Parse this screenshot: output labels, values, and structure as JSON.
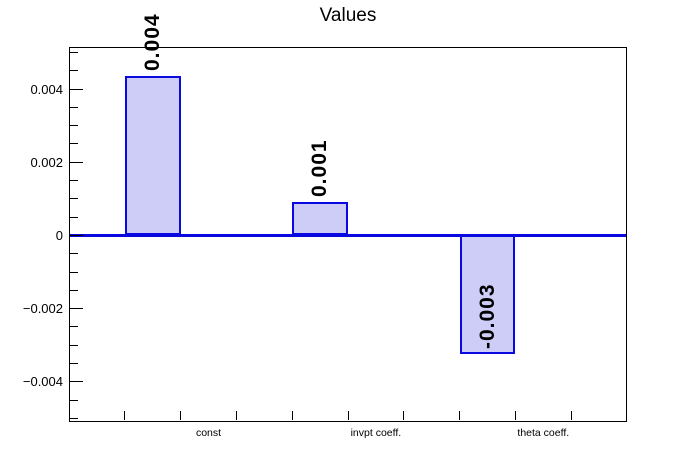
{
  "chart_data": {
    "type": "bar",
    "title": "Values",
    "categories": [
      "const",
      "invpt coeff.",
      "theta coeff."
    ],
    "values": [
      0.00436,
      0.0009,
      -0.00325
    ],
    "bar_value_labels": [
      "0.004",
      "0.001",
      "-0.003"
    ],
    "xlabel": "",
    "ylabel": "",
    "ylim": [
      -0.0051,
      0.00515
    ],
    "yticks": [
      {
        "v": 0.004,
        "label": "0.004"
      },
      {
        "v": 0.002,
        "label": "0.002"
      },
      {
        "v": 0.0,
        "label": "0"
      },
      {
        "v": -0.002,
        "label": "−0.002"
      },
      {
        "v": -0.004,
        "label": "−0.004"
      }
    ],
    "ytick_minor_step": 0.0005,
    "xtick_divisions": 10,
    "grid": false,
    "legend": null,
    "colors": {
      "bar_fill": "#cdcdf7",
      "bar_border": "#0a0ae0",
      "zero_line": "#0a0ae0",
      "frame": "#000000",
      "text": "#000000",
      "background": "#ffffff"
    }
  }
}
